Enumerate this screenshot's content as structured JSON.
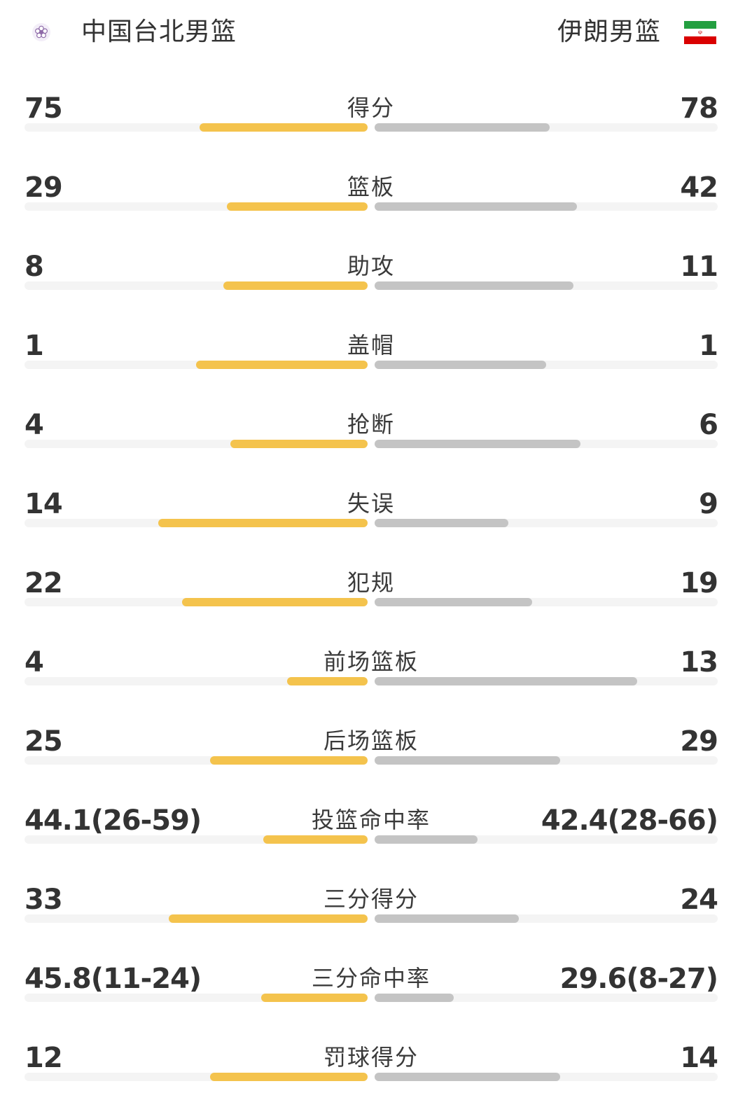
{
  "teams": {
    "left": {
      "name": "中国台北男篮",
      "logo_icon": "plum-blossom-emblem-icon"
    },
    "right": {
      "name": "伊朗男篮",
      "flag_icon": "iran-flag-icon"
    }
  },
  "colors": {
    "left_bar": "#f4c34d",
    "right_bar": "#c4c4c4",
    "track": "#f4f4f4",
    "flag_green": "#239f40",
    "flag_white": "#ffffff",
    "flag_red": "#da0000"
  },
  "stats": [
    {
      "label": "得分",
      "left": "75",
      "right": "78",
      "left_fill": 0.49,
      "right_fill": 0.51
    },
    {
      "label": "篮板",
      "left": "29",
      "right": "42",
      "left_fill": 0.41,
      "right_fill": 0.59
    },
    {
      "label": "助攻",
      "left": "8",
      "right": "11",
      "left_fill": 0.42,
      "right_fill": 0.58
    },
    {
      "label": "盖帽",
      "left": "1",
      "right": "1",
      "left_fill": 0.5,
      "right_fill": 0.5
    },
    {
      "label": "抢断",
      "left": "4",
      "right": "6",
      "left_fill": 0.4,
      "right_fill": 0.6
    },
    {
      "label": "失误",
      "left": "14",
      "right": "9",
      "left_fill": 0.61,
      "right_fill": 0.39
    },
    {
      "label": "犯规",
      "left": "22",
      "right": "19",
      "left_fill": 0.54,
      "right_fill": 0.46
    },
    {
      "label": "前场篮板",
      "left": "4",
      "right": "13",
      "left_fill": 0.235,
      "right_fill": 0.765
    },
    {
      "label": "后场篮板",
      "left": "25",
      "right": "29",
      "left_fill": 0.46,
      "right_fill": 0.54
    },
    {
      "label": "投篮命中率",
      "left": "44.1(26-59)",
      "right": "42.4(28-66)",
      "left_fill": 0.305,
      "right_fill": 0.3
    },
    {
      "label": "三分得分",
      "left": "33",
      "right": "24",
      "left_fill": 0.58,
      "right_fill": 0.42
    },
    {
      "label": "三分命中率",
      "left": "45.8(11-24)",
      "right": "29.6(8-27)",
      "left_fill": 0.31,
      "right_fill": 0.23
    },
    {
      "label": "罚球得分",
      "left": "12",
      "right": "14",
      "left_fill": 0.46,
      "right_fill": 0.54
    }
  ]
}
